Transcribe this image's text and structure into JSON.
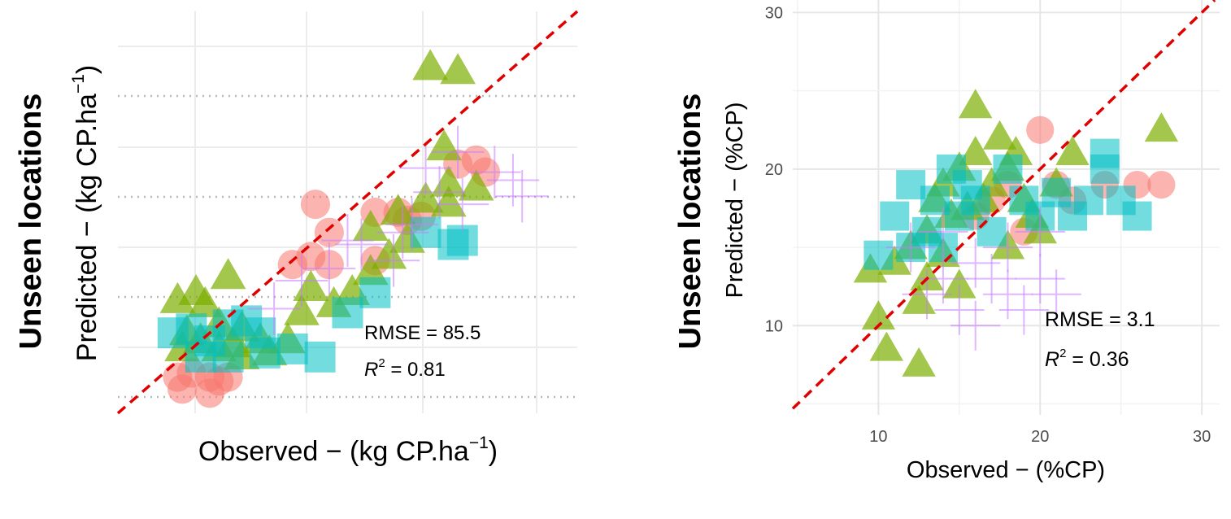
{
  "colors": {
    "group_a": "#f8766d",
    "group_b": "#7cae00",
    "group_c": "#00bfc4",
    "group_d": "#c77cff",
    "ref_line": "#e00000",
    "grid": "#ebebeb"
  },
  "chart_data": [
    {
      "type": "scatter",
      "panel": "left",
      "row_title": "Unseen locations",
      "xlabel_main": "Observed − (kg CP.ha",
      "xlabel_sup": "−1",
      "xlabel_close": ")",
      "ylabel_main": "Predicted − (kg CP.ha",
      "ylabel_sup": "−1",
      "ylabel_close": ")",
      "x_ticks": [],
      "y_ticks": [],
      "xlim": [
        0,
        100
      ],
      "ylim": [
        0,
        100
      ],
      "reference_line": "y = x",
      "grid": true,
      "stats": {
        "rmse_label": "RMSE = 85.5",
        "r2_prefix": "R",
        "r2_sup": "2",
        "r2_value": " = 0.81"
      },
      "series": [
        {
          "marker": "circle",
          "color_key": "group_a",
          "points": [
            [
              14,
              6
            ],
            [
              20,
              5
            ],
            [
              13,
              9
            ],
            [
              20,
              9
            ],
            [
              16,
              10
            ],
            [
              22,
              8
            ],
            [
              24,
              9
            ],
            [
              38,
              37
            ],
            [
              42,
              39
            ],
            [
              46,
              37
            ],
            [
              56,
              38
            ],
            [
              63,
              48
            ],
            [
              56,
              50
            ],
            [
              61,
              50
            ],
            [
              66,
              49
            ],
            [
              80,
              60
            ],
            [
              74,
              62
            ],
            [
              78,
              63
            ],
            [
              46,
              45
            ],
            [
              43,
              52
            ]
          ]
        },
        {
          "marker": "triangle",
          "color_key": "group_b",
          "points": [
            [
              13,
              28
            ],
            [
              17,
              30
            ],
            [
              19,
              27
            ],
            [
              24,
              34
            ],
            [
              22,
              22
            ],
            [
              27,
              21
            ],
            [
              15,
              20
            ],
            [
              18,
              18
            ],
            [
              14,
              16
            ],
            [
              22,
              16
            ],
            [
              25,
              17
            ],
            [
              27,
              14
            ],
            [
              31,
              18
            ],
            [
              33,
              15
            ],
            [
              37,
              18
            ],
            [
              40,
              25
            ],
            [
              42,
              31
            ],
            [
              47,
              27
            ],
            [
              51,
              30
            ],
            [
              55,
              35
            ],
            [
              59,
              39
            ],
            [
              63,
              43
            ],
            [
              55,
              46
            ],
            [
              61,
              50
            ],
            [
              67,
              53
            ],
            [
              72,
              52
            ],
            [
              72,
              57
            ],
            [
              78,
              56
            ],
            [
              71,
              66
            ],
            [
              68,
              86
            ],
            [
              74,
              85
            ]
          ]
        },
        {
          "marker": "square",
          "color_key": "group_c",
          "points": [
            [
              12,
              20
            ],
            [
              16,
              21
            ],
            [
              20,
              18
            ],
            [
              24,
              22
            ],
            [
              28,
              23
            ],
            [
              31,
              20
            ],
            [
              18,
              14
            ],
            [
              24,
              14
            ],
            [
              32,
              15
            ],
            [
              38,
              16
            ],
            [
              44,
              14
            ],
            [
              50,
              25
            ],
            [
              56,
              30
            ],
            [
              67,
              45
            ],
            [
              73,
              42
            ],
            [
              75,
              43
            ]
          ]
        },
        {
          "marker": "plus",
          "color_key": "group_d",
          "points": [
            [
              34,
              26
            ],
            [
              40,
              33
            ],
            [
              46,
              36
            ],
            [
              50,
              43
            ],
            [
              53,
              42
            ],
            [
              60,
              38
            ],
            [
              64,
              47
            ],
            [
              67,
              61
            ],
            [
              70,
              55
            ],
            [
              74,
              65
            ],
            [
              82,
              60
            ],
            [
              86,
              58
            ],
            [
              88,
              54
            ],
            [
              75,
              52
            ],
            [
              62,
              45
            ]
          ]
        }
      ]
    },
    {
      "type": "scatter",
      "panel": "right",
      "row_title": "Unseen locations",
      "xlabel": "Observed − (%CP)",
      "ylabel": "Predicted − (%CP)",
      "x_ticks": [
        "10",
        "20",
        "30"
      ],
      "y_ticks": [
        "10",
        "20",
        "30"
      ],
      "xlim": [
        4.7,
        31.1
      ],
      "ylim": [
        4.3,
        30.8
      ],
      "reference_line": "y = x",
      "grid": true,
      "stats": {
        "rmse_label": "RMSE = 3.1",
        "r2_prefix": "R",
        "r2_sup": "2",
        "r2_value": " = 0.36"
      },
      "series": [
        {
          "marker": "circle",
          "color_key": "group_a",
          "points": [
            [
              16,
              17
            ],
            [
              17,
              18
            ],
            [
              18,
              19
            ],
            [
              19,
              16
            ],
            [
              20,
              22.5
            ],
            [
              21,
              19
            ],
            [
              24,
              19
            ],
            [
              26,
              19
            ],
            [
              27.5,
              19
            ],
            [
              22,
              18
            ]
          ]
        },
        {
          "marker": "triangle",
          "color_key": "group_b",
          "points": [
            [
              9.5,
              13.5
            ],
            [
              10,
              10.5
            ],
            [
              10.5,
              8.5
            ],
            [
              11,
              14
            ],
            [
              12,
              15
            ],
            [
              12.5,
              11.5
            ],
            [
              13,
              16
            ],
            [
              13.5,
              18
            ],
            [
              14,
              19
            ],
            [
              14.5,
              17
            ],
            [
              15,
              20
            ],
            [
              15.5,
              17.5
            ],
            [
              16,
              21
            ],
            [
              16,
              24
            ],
            [
              16.5,
              18
            ],
            [
              17,
              19
            ],
            [
              17.5,
              22
            ],
            [
              18,
              20
            ],
            [
              18.5,
              21
            ],
            [
              19,
              18
            ],
            [
              19.5,
              17
            ],
            [
              20,
              16
            ],
            [
              21,
              19
            ],
            [
              22,
              21
            ],
            [
              12.5,
              7.5
            ],
            [
              13,
              13
            ],
            [
              14,
              14.5
            ],
            [
              27.5,
              22.5
            ],
            [
              18,
              15
            ],
            [
              15,
              12.5
            ]
          ]
        },
        {
          "marker": "square",
          "color_key": "group_c",
          "points": [
            [
              10,
              14.5
            ],
            [
              11,
              17
            ],
            [
              12,
              15
            ],
            [
              12,
              19
            ],
            [
              13,
              16
            ],
            [
              13.5,
              18
            ],
            [
              14,
              15
            ],
            [
              14.5,
              20
            ],
            [
              15,
              17
            ],
            [
              15.5,
              19
            ],
            [
              16,
              18
            ],
            [
              17,
              16
            ],
            [
              18,
              20
            ],
            [
              19,
              18
            ],
            [
              20,
              17
            ],
            [
              21,
              18.5
            ],
            [
              22,
              17
            ],
            [
              23,
              18
            ],
            [
              24,
              20
            ],
            [
              25,
              18
            ],
            [
              26,
              17
            ],
            [
              24,
              21
            ]
          ]
        },
        {
          "marker": "plus",
          "color_key": "group_d",
          "points": [
            [
              13,
              12
            ],
            [
              14,
              13
            ],
            [
              15,
              11
            ],
            [
              16,
              10
            ],
            [
              17,
              13
            ],
            [
              18,
              12
            ],
            [
              19,
              11
            ],
            [
              20,
              13
            ],
            [
              21,
              12
            ],
            [
              12,
              15
            ],
            [
              14,
              16
            ],
            [
              16,
              14
            ],
            [
              18,
              15
            ],
            [
              20,
              16
            ]
          ]
        }
      ]
    }
  ]
}
